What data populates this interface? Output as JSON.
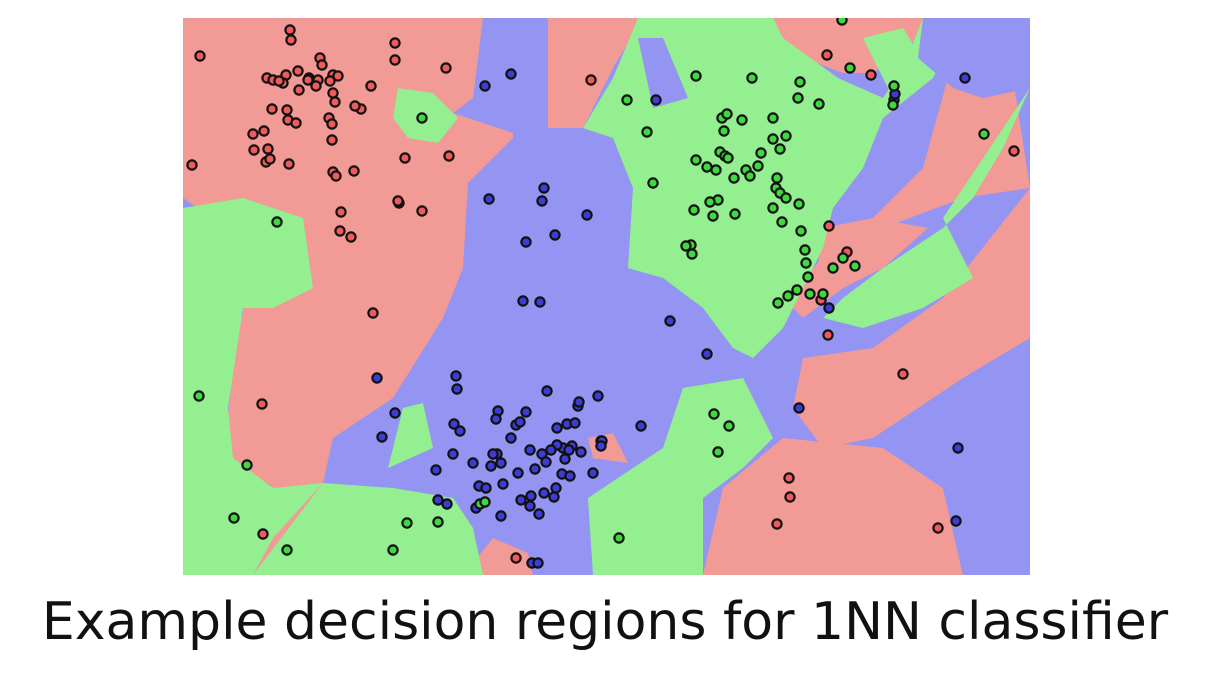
{
  "caption": "Example decision regions for 1NN classifier",
  "chart_data": {
    "type": "scatter",
    "title": "",
    "xlabel": "",
    "ylabel": "",
    "xlim": [
      0,
      847
    ],
    "ylim": [
      0,
      557
    ],
    "grid": false,
    "background_regions": "1-nearest-neighbour decision regions (Voronoi) colored by class",
    "series": [
      {
        "color": "#ef5b5b",
        "region_color": "#f29a95",
        "points": [
          [
            17,
            38
          ],
          [
            107,
            12
          ],
          [
            108,
            22
          ],
          [
            137,
            40
          ],
          [
            139,
            47
          ],
          [
            115,
            53
          ],
          [
            103,
            57
          ],
          [
            84,
            60
          ],
          [
            90,
            62
          ],
          [
            126,
            60
          ],
          [
            135,
            62
          ],
          [
            150,
            57
          ],
          [
            147,
            63
          ],
          [
            125,
            62
          ],
          [
            155,
            58
          ],
          [
            188,
            68
          ],
          [
            212,
            25
          ],
          [
            212,
            42
          ],
          [
            263,
            50
          ],
          [
            100,
            65
          ],
          [
            96,
            63
          ],
          [
            116,
            72
          ],
          [
            133,
            68
          ],
          [
            150,
            75
          ],
          [
            152,
            84
          ],
          [
            178,
            91
          ],
          [
            172,
            88
          ],
          [
            146,
            100
          ],
          [
            149,
            106
          ],
          [
            105,
            102
          ],
          [
            89,
            91
          ],
          [
            81,
            113
          ],
          [
            104,
            92
          ],
          [
            113,
            105
          ],
          [
            149,
            122
          ],
          [
            70,
            116
          ],
          [
            71,
            132
          ],
          [
            85,
            131
          ],
          [
            83,
            144
          ],
          [
            87,
            141
          ],
          [
            106,
            146
          ],
          [
            222,
            140
          ],
          [
            9,
            147
          ],
          [
            150,
            154
          ],
          [
            153,
            158
          ],
          [
            171,
            153
          ],
          [
            266,
            138
          ],
          [
            216,
            185
          ],
          [
            215,
            183
          ],
          [
            239,
            193
          ],
          [
            158,
            194
          ],
          [
            157,
            213
          ],
          [
            168,
            219
          ],
          [
            190,
            295
          ],
          [
            408,
            62
          ],
          [
            644,
            37
          ],
          [
            688,
            57
          ],
          [
            646,
            208
          ],
          [
            638,
            282
          ],
          [
            645,
            317
          ],
          [
            720,
            356
          ],
          [
            79,
            386
          ],
          [
            80,
            516
          ],
          [
            606,
            460
          ],
          [
            607,
            479
          ],
          [
            594,
            506
          ],
          [
            755,
            510
          ],
          [
            333,
            540
          ],
          [
            418,
            423
          ],
          [
            831,
            133
          ],
          [
            664,
            234
          ]
        ]
      },
      {
        "color": "#3d3dd6",
        "region_color": "#9494f2",
        "points": [
          [
            328,
            56
          ],
          [
            302,
            68
          ],
          [
            782,
            60
          ],
          [
            711,
            82
          ],
          [
            712,
            76
          ],
          [
            473,
            82
          ],
          [
            361,
            170
          ],
          [
            359,
            183
          ],
          [
            306,
            181
          ],
          [
            404,
            197
          ],
          [
            372,
            217
          ],
          [
            343,
            224
          ],
          [
            340,
            283
          ],
          [
            357,
            284
          ],
          [
            487,
            303
          ],
          [
            524,
            336
          ],
          [
            194,
            360
          ],
          [
            273,
            358
          ],
          [
            274,
            371
          ],
          [
            364,
            373
          ],
          [
            395,
            388
          ],
          [
            396,
            384
          ],
          [
            415,
            378
          ],
          [
            458,
            408
          ],
          [
            315,
            393
          ],
          [
            343,
            394
          ],
          [
            313,
            401
          ],
          [
            333,
            407
          ],
          [
            337,
            404
          ],
          [
            212,
            395
          ],
          [
            374,
            410
          ],
          [
            384,
            406
          ],
          [
            392,
            405
          ],
          [
            199,
            419
          ],
          [
            328,
            420
          ],
          [
            271,
            406
          ],
          [
            277,
            413
          ],
          [
            419,
            423
          ],
          [
            418,
            428
          ],
          [
            398,
            434
          ],
          [
            389,
            428
          ],
          [
            380,
            430
          ],
          [
            374,
            427
          ],
          [
            368,
            432
          ],
          [
            270,
            436
          ],
          [
            314,
            436
          ],
          [
            318,
            445
          ],
          [
            310,
            436
          ],
          [
            290,
            445
          ],
          [
            308,
            448
          ],
          [
            347,
            432
          ],
          [
            359,
            436
          ],
          [
            363,
            444
          ],
          [
            386,
            432
          ],
          [
            382,
            441
          ],
          [
            335,
            455
          ],
          [
            352,
            451
          ],
          [
            379,
            456
          ],
          [
            387,
            458
          ],
          [
            410,
            455
          ],
          [
            373,
            470
          ],
          [
            361,
            475
          ],
          [
            348,
            478
          ],
          [
            371,
            479
          ],
          [
            338,
            482
          ],
          [
            320,
            466
          ],
          [
            253,
            452
          ],
          [
            296,
            468
          ],
          [
            293,
            490
          ],
          [
            318,
            498
          ],
          [
            347,
            488
          ],
          [
            303,
            470
          ],
          [
            255,
            482
          ],
          [
            264,
            486
          ],
          [
            356,
            496
          ],
          [
            616,
            390
          ],
          [
            646,
            290
          ],
          [
            775,
            430
          ],
          [
            773,
            503
          ],
          [
            349,
            545
          ],
          [
            355,
            545
          ]
        ]
      },
      {
        "color": "#3fd93f",
        "region_color": "#93ef8f",
        "points": [
          [
            659,
            2
          ],
          [
            667,
            50
          ],
          [
            711,
            68
          ],
          [
            513,
            58
          ],
          [
            569,
            60
          ],
          [
            617,
            64
          ],
          [
            615,
            80
          ],
          [
            636,
            86
          ],
          [
            444,
            82
          ],
          [
            464,
            114
          ],
          [
            539,
            100
          ],
          [
            544,
            96
          ],
          [
            559,
            102
          ],
          [
            590,
            100
          ],
          [
            541,
            113
          ],
          [
            590,
            121
          ],
          [
            603,
            118
          ],
          [
            597,
            131
          ],
          [
            537,
            134
          ],
          [
            542,
            138
          ],
          [
            545,
            140
          ],
          [
            578,
            135
          ],
          [
            575,
            148
          ],
          [
            563,
            152
          ],
          [
            567,
            158
          ],
          [
            594,
            160
          ],
          [
            513,
            142
          ],
          [
            524,
            149
          ],
          [
            533,
            152
          ],
          [
            551,
            160
          ],
          [
            593,
            170
          ],
          [
            597,
            175
          ],
          [
            603,
            180
          ],
          [
            535,
            182
          ],
          [
            527,
            184
          ],
          [
            590,
            190
          ],
          [
            511,
            192
          ],
          [
            530,
            198
          ],
          [
            552,
            196
          ],
          [
            470,
            165
          ],
          [
            616,
            186
          ],
          [
            618,
            213
          ],
          [
            622,
            232
          ],
          [
            623,
            245
          ],
          [
            599,
            204
          ],
          [
            508,
            227
          ],
          [
            503,
            228
          ],
          [
            509,
            236
          ],
          [
            625,
            259
          ],
          [
            614,
            272
          ],
          [
            660,
            240
          ],
          [
            650,
            250
          ],
          [
            672,
            248
          ],
          [
            605,
            278
          ],
          [
            595,
            285
          ],
          [
            627,
            276
          ],
          [
            640,
            276
          ],
          [
            801,
            116
          ],
          [
            710,
            87
          ],
          [
            239,
            100
          ],
          [
            94,
            204
          ],
          [
            16,
            378
          ],
          [
            64,
            447
          ],
          [
            51,
            500
          ],
          [
            104,
            532
          ],
          [
            224,
            505
          ],
          [
            210,
            532
          ],
          [
            255,
            504
          ],
          [
            436,
            520
          ],
          [
            531,
            396
          ],
          [
            546,
            408
          ],
          [
            535,
            434
          ],
          [
            297,
            486
          ],
          [
            302,
            484
          ]
        ]
      }
    ]
  }
}
